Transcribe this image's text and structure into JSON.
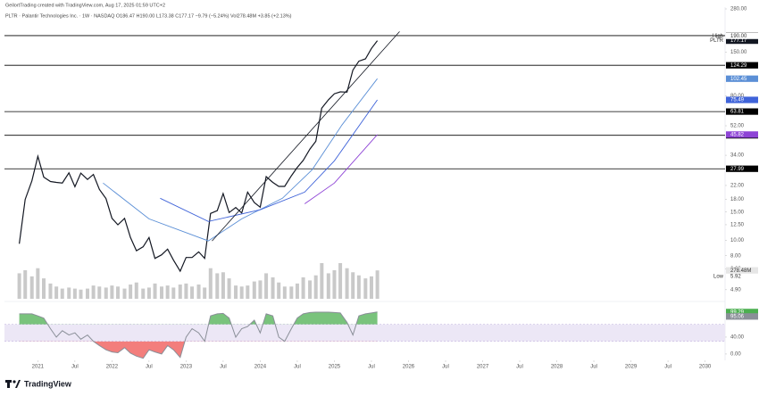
{
  "chart_data": {
    "type": "line",
    "title": "GeilortTrading created with TradingView.com, Aug 17, 2025 01:59 UTC+2",
    "subtitle": "PLTR · Palantir Technologies Inc. · 1W · NASDAQ  O186.47 H190.00 L173.38 C177.17 −9.79 (−5.24%)  Vol278.48M +3.85 (+2.13%)",
    "watermark": "TradingView",
    "log_scale": true,
    "grid": false,
    "xlim": [
      2020.55,
      2030.27
    ],
    "xticks": [
      {
        "value": 2021,
        "label": "2021"
      },
      {
        "value": 2021.5,
        "label": "Jul"
      },
      {
        "value": 2022,
        "label": "2022"
      },
      {
        "value": 2022.5,
        "label": "Jul"
      },
      {
        "value": 2023,
        "label": "2023"
      },
      {
        "value": 2023.5,
        "label": "Jul"
      },
      {
        "value": 2024,
        "label": "2024"
      },
      {
        "value": 2024.5,
        "label": "Jul"
      },
      {
        "value": 2025,
        "label": "2025"
      },
      {
        "value": 2025.5,
        "label": "Jul"
      },
      {
        "value": 2026,
        "label": "2026"
      },
      {
        "value": 2026.5,
        "label": "Jul"
      },
      {
        "value": 2027,
        "label": "2027"
      },
      {
        "value": 2027.5,
        "label": "Jul"
      },
      {
        "value": 2028,
        "label": "2028"
      },
      {
        "value": 2028.5,
        "label": "Jul"
      },
      {
        "value": 2029,
        "label": "2029"
      },
      {
        "value": 2029.5,
        "label": "Jul"
      },
      {
        "value": 2030,
        "label": "2030"
      }
    ],
    "ylim": [
      4.3,
      280
    ],
    "yticks": [
      {
        "value": 280,
        "label": "280.00"
      },
      {
        "value": 150,
        "label": "150.00"
      },
      {
        "value": 80,
        "label": "80.00"
      },
      {
        "value": 52,
        "label": "52.00"
      },
      {
        "value": 34,
        "label": "34.00"
      },
      {
        "value": 22,
        "label": "22.00"
      },
      {
        "value": 18,
        "label": "18.00"
      },
      {
        "value": 15,
        "label": "15.00"
      },
      {
        "value": 12.5,
        "label": "12.50"
      },
      {
        "value": 10,
        "label": "10.00"
      },
      {
        "value": 8,
        "label": "8.00"
      },
      {
        "value": 6.6,
        "label": "6.60"
      },
      {
        "value": 4.9,
        "label": "4.90"
      }
    ],
    "levels": [
      190.63,
      124.29,
      63.81,
      45.34,
      27.99
    ],
    "level_color": "#000000",
    "series": [
      {
        "name": "PLTR",
        "color": "#131722",
        "width": 1.2,
        "last_label": true,
        "x": [
          2020.75,
          2020.83,
          2020.92,
          2021.0,
          2021.08,
          2021.17,
          2021.25,
          2021.33,
          2021.42,
          2021.5,
          2021.58,
          2021.67,
          2021.75,
          2021.83,
          2021.92,
          2022.0,
          2022.08,
          2022.17,
          2022.25,
          2022.33,
          2022.42,
          2022.5,
          2022.58,
          2022.67,
          2022.75,
          2022.83,
          2022.92,
          2023.0,
          2023.08,
          2023.17,
          2023.25,
          2023.33,
          2023.42,
          2023.5,
          2023.58,
          2023.67,
          2023.75,
          2023.83,
          2023.92,
          2024.0,
          2024.08,
          2024.17,
          2024.25,
          2024.33,
          2024.42,
          2024.5,
          2024.58,
          2024.67,
          2024.75,
          2024.83,
          2024.92,
          2025.0,
          2025.08,
          2025.17,
          2025.25,
          2025.33,
          2025.42,
          2025.5,
          2025.58
        ],
        "values": [
          9.5,
          18,
          23.5,
          33.5,
          24.8,
          23.3,
          23,
          22.8,
          26.4,
          21.6,
          26.3,
          24,
          25.8,
          20.8,
          18.2,
          13.7,
          12.5,
          13.7,
          10.4,
          8.6,
          9.1,
          10.4,
          7.7,
          8.1,
          8.8,
          7.5,
          6.4,
          7.8,
          7.8,
          8.45,
          7.7,
          14.7,
          15.3,
          19.6,
          14.9,
          16,
          14.8,
          20,
          17.2,
          16.1,
          25,
          23,
          21.7,
          21.7,
          25.3,
          28.5,
          31.6,
          37.2,
          41.6,
          67,
          75.6,
          82.5,
          84.8,
          84.4,
          116,
          131.8,
          136.3,
          158.4,
          177.17
        ]
      },
      {
        "color": "#5b8fd6",
        "width": 0.9,
        "last_label": true,
        "x": [
          2021.88,
          2022.5,
          2023.3,
          2023.75,
          2024.3,
          2024.7,
          2025.1,
          2025.58
        ],
        "values": [
          22.8,
          13.6,
          9.9,
          13.6,
          18.3,
          27.6,
          52.5,
          102.45
        ]
      },
      {
        "color": "#3f63d9",
        "width": 0.9,
        "last_label": true,
        "x": [
          2022.65,
          2023.3,
          2024.0,
          2024.6,
          2025.0,
          2025.58
        ],
        "values": [
          18.3,
          13.1,
          15.5,
          20,
          31.4,
          75.49
        ]
      },
      {
        "color": "#8e44d6",
        "width": 0.9,
        "last_label": true,
        "x": [
          2024.6,
          2025.0,
          2025.58
        ],
        "values": [
          16.9,
          22.8,
          45.82
        ]
      },
      {
        "color": "#131722",
        "width": 0.8,
        "last_label": false,
        "x": [
          2023.35,
          2025.88
        ],
        "values": [
          9.9,
          202
        ]
      }
    ],
    "high": {
      "prefix": "High",
      "value": 190,
      "label": "190.00"
    },
    "low": {
      "prefix": "Low",
      "value": 5.92
    },
    "volume": {
      "color": "#c9c9c9",
      "values": [
        250,
        280,
        220,
        300,
        200,
        150,
        120,
        100,
        110,
        100,
        90,
        100,
        130,
        120,
        110,
        130,
        120,
        100,
        140,
        160,
        100,
        110,
        150,
        120,
        130,
        110,
        140,
        150,
        120,
        140,
        110,
        300,
        250,
        260,
        200,
        130,
        120,
        130,
        170,
        180,
        250,
        210,
        160,
        120,
        120,
        150,
        210,
        180,
        230,
        350,
        250,
        280,
        350,
        300,
        260,
        230,
        200,
        220,
        278.48
      ],
      "last_value_label": "278.48M"
    },
    "indicator": {
      "color": "#8a8f98",
      "up_color": "#4caf50",
      "down_color": "#ef5350",
      "band_color": "#ece7f6",
      "ylim": [
        -17,
        120
      ],
      "yticks": [
        {
          "value": 40,
          "label": "40.00"
        },
        {
          "value": 0,
          "label": "0.00"
        }
      ],
      "band": [
        30,
        70
      ],
      "values": [
        95,
        95,
        95,
        90,
        85,
        60,
        40,
        55,
        45,
        50,
        35,
        45,
        30,
        20,
        10,
        5,
        3,
        15,
        2,
        -5,
        -10,
        10,
        5,
        0,
        20,
        10,
        -8,
        40,
        60,
        50,
        30,
        90,
        95,
        96,
        85,
        40,
        60,
        65,
        80,
        50,
        95,
        90,
        40,
        30,
        60,
        85,
        95,
        98,
        99,
        99,
        99,
        98,
        97,
        75,
        45,
        90,
        95,
        97,
        99.29
      ],
      "signal_last": 95.06
    }
  }
}
